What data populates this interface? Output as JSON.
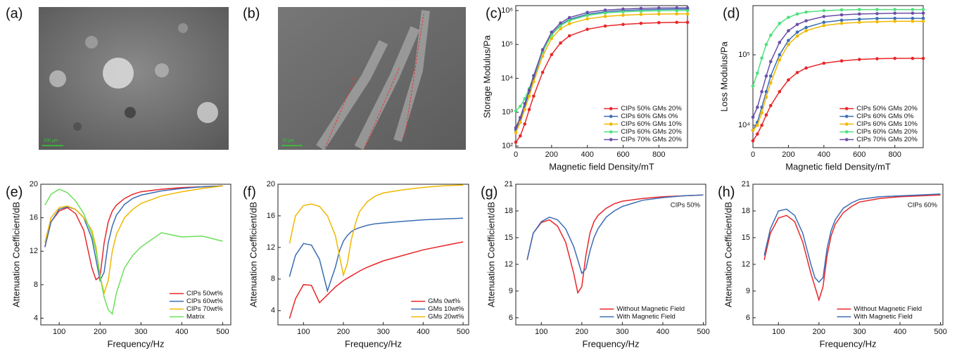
{
  "images": [
    {
      "label": "(a)",
      "scale_bar": "100 μm"
    },
    {
      "label": "(b)",
      "scale_bar": "20 μm"
    }
  ],
  "chart_data": [
    {
      "type": "line",
      "label": "(c)",
      "xlabel": "Magnetic field Density/mT",
      "ylabel": "Storage Modulus/Pa",
      "yscale": "log",
      "markers": true,
      "legend": "lower right",
      "x": [
        0,
        25,
        50,
        75,
        100,
        150,
        200,
        250,
        300,
        400,
        500,
        600,
        700,
        800,
        900,
        960
      ],
      "xlim": [
        0,
        960
      ],
      "xticks": [
        0,
        200,
        400,
        600,
        800
      ],
      "ylim": [
        90,
        1400000
      ],
      "yticks": [
        {
          "value": 100,
          "label": "10²"
        },
        {
          "value": 1000,
          "label": "10³"
        },
        {
          "value": 10000,
          "label": "10⁴"
        },
        {
          "value": 100000,
          "label": "10⁵"
        },
        {
          "value": 1000000,
          "label": "10⁶"
        }
      ],
      "series": [
        {
          "name": "CIPs 50% GMs 20%",
          "color": "#e8262a",
          "values": [
            130,
            200,
            450,
            1200,
            3000,
            15000,
            50000,
            110000,
            180000,
            280000,
            350000,
            390000,
            420000,
            440000,
            450000,
            450000
          ]
        },
        {
          "name": "CIPs 60% GMs 0%",
          "color": "#3b6db3",
          "values": [
            300,
            600,
            1500,
            4000,
            10000,
            60000,
            200000,
            380000,
            550000,
            780000,
            920000,
            1000000,
            1050000,
            1080000,
            1100000,
            1100000
          ]
        },
        {
          "name": "CIPs 60% GMs 10%",
          "color": "#f0b800",
          "values": [
            250,
            500,
            1200,
            3000,
            8000,
            45000,
            150000,
            290000,
            410000,
            570000,
            670000,
            730000,
            770000,
            790000,
            800000,
            800000
          ]
        },
        {
          "name": "CIPs 60% GMs 20%",
          "color": "#4fe07e",
          "values": [
            1100,
            1500,
            2500,
            5000,
            12000,
            60000,
            190000,
            360000,
            510000,
            720000,
            850000,
            920000,
            960000,
            990000,
            1000000,
            1000000
          ]
        },
        {
          "name": "CIPs 70% GMs 20%",
          "color": "#6a4fa8",
          "values": [
            350,
            700,
            1800,
            4500,
            12000,
            70000,
            230000,
            430000,
            620000,
            880000,
            1030000,
            1110000,
            1160000,
            1190000,
            1200000,
            1200000
          ]
        }
      ]
    },
    {
      "type": "line",
      "label": "(d)",
      "xlabel": "Magnetic field Density/mT",
      "ylabel": "Loss Modulus/Pa",
      "yscale": "log",
      "markers": true,
      "legend": "lower right",
      "x": [
        0,
        25,
        50,
        75,
        100,
        150,
        200,
        250,
        300,
        400,
        500,
        600,
        700,
        800,
        900,
        960
      ],
      "xlim": [
        0,
        960
      ],
      "xticks": [
        0,
        200,
        400,
        600,
        800
      ],
      "ylim": [
        4800,
        500000
      ],
      "yticks": [
        {
          "value": 10000,
          "label": "10⁴"
        },
        {
          "value": 100000,
          "label": "10⁵"
        }
      ],
      "series": [
        {
          "name": "CIPs 50% GMs 20%",
          "color": "#e8262a",
          "values": [
            6000,
            7500,
            10000,
            14000,
            19000,
            30000,
            44000,
            56000,
            65000,
            76000,
            82000,
            86000,
            88000,
            89000,
            89000,
            89000
          ]
        },
        {
          "name": "CIPs 60% GMs 0%",
          "color": "#3b6db3",
          "values": [
            8500,
            11000,
            18000,
            30000,
            50000,
            100000,
            160000,
            210000,
            245000,
            290000,
            310000,
            320000,
            328000,
            330000,
            330000,
            330000
          ]
        },
        {
          "name": "CIPs 60% GMs 10%",
          "color": "#f0b800",
          "values": [
            8500,
            10000,
            15000,
            25000,
            40000,
            85000,
            140000,
            185000,
            220000,
            260000,
            280000,
            290000,
            295000,
            300000,
            300000,
            300000
          ]
        },
        {
          "name": "CIPs 60% GMs 20%",
          "color": "#4fe07e",
          "values": [
            36000,
            55000,
            90000,
            140000,
            190000,
            280000,
            340000,
            380000,
            405000,
            425000,
            435000,
            440000,
            440000,
            440000,
            440000,
            440000
          ]
        },
        {
          "name": "CIPs 70% GMs 20%",
          "color": "#6a4fa8",
          "values": [
            13000,
            18000,
            30000,
            50000,
            80000,
            150000,
            220000,
            270000,
            305000,
            350000,
            370000,
            380000,
            385000,
            390000,
            390000,
            390000
          ]
        }
      ]
    },
    {
      "type": "line",
      "label": "(e)",
      "xlabel": "Frequency/Hz",
      "ylabel": "Attenuation Coefficient/dB",
      "legend": "lower right",
      "x": [
        65,
        80,
        100,
        120,
        140,
        160,
        180,
        190,
        200,
        210,
        220,
        230,
        240,
        260,
        280,
        300,
        350,
        400,
        450,
        500
      ],
      "xlim": [
        55,
        520
      ],
      "xticks": [
        100,
        200,
        300,
        400,
        500
      ],
      "ylim": [
        3.2,
        20
      ],
      "yticks": [
        4,
        8,
        12,
        16,
        20
      ],
      "series": [
        {
          "name": "CIPs 50wt%",
          "color": "#e8262a",
          "values": [
            12.5,
            15.5,
            16.8,
            17.2,
            16.5,
            14.5,
            10,
            8.6,
            9,
            13,
            15.5,
            16.8,
            17.5,
            18.3,
            18.8,
            19.1,
            19.4,
            19.6,
            19.7,
            19.8
          ]
        },
        {
          "name": "CIPs 60wt%",
          "color": "#3b6db3",
          "values": [
            12.5,
            15.5,
            17,
            17.3,
            17,
            16,
            13.5,
            11,
            8.5,
            9.5,
            13,
            15,
            16.3,
            17.6,
            18.3,
            18.7,
            19.2,
            19.5,
            19.7,
            19.8
          ]
        },
        {
          "name": "CIPs 70wt%",
          "color": "#f0b800",
          "values": [
            13,
            16,
            17.2,
            17.4,
            17,
            16,
            14.5,
            12.5,
            9,
            7,
            8.5,
            12,
            14,
            16,
            17,
            17.7,
            18.6,
            19.1,
            19.5,
            19.8
          ]
        },
        {
          "name": "Matrix",
          "color": "#6be05a",
          "values": [
            17.5,
            18.8,
            19.4,
            19,
            18,
            16.5,
            14,
            12,
            9,
            6.5,
            5,
            4.5,
            7,
            10,
            11.5,
            12.5,
            14.2,
            13.7,
            13.8,
            13.2
          ]
        }
      ]
    },
    {
      "type": "line",
      "label": "(f)",
      "xlabel": "Frequency/Hz",
      "ylabel": "Attenuation Coefficient/dB",
      "legend": "lower right",
      "x": [
        65,
        80,
        100,
        120,
        140,
        160,
        180,
        190,
        200,
        210,
        220,
        230,
        240,
        260,
        280,
        300,
        350,
        400,
        450,
        500
      ],
      "xlim": [
        36,
        514
      ],
      "xticks": [
        100,
        200,
        300,
        400,
        500
      ],
      "ylim": [
        2.2,
        20
      ],
      "yticks": [
        4,
        8,
        12,
        16,
        20
      ],
      "series": [
        {
          "name": "GMs 0wt%",
          "color": "#e8262a",
          "values": [
            3,
            5.5,
            7.3,
            7.2,
            5,
            6,
            7,
            7.4,
            7.8,
            8.1,
            8.4,
            8.7,
            9,
            9.5,
            9.9,
            10.3,
            11,
            11.7,
            12.2,
            12.7
          ]
        },
        {
          "name": "GMs 10wt%",
          "color": "#3b6db3",
          "values": [
            8.3,
            11,
            12.5,
            12.3,
            10.5,
            6.5,
            9.5,
            11.5,
            12.8,
            13.5,
            14,
            14.3,
            14.5,
            14.8,
            15,
            15.1,
            15.3,
            15.5,
            15.6,
            15.7
          ]
        },
        {
          "name": "GMs 20wt%",
          "color": "#f0b800",
          "values": [
            12.5,
            16,
            17.3,
            17.5,
            17.2,
            16,
            13.5,
            11,
            8.5,
            10,
            13,
            15,
            16.5,
            17.8,
            18.5,
            18.9,
            19.3,
            19.6,
            19.8,
            19.9
          ]
        }
      ]
    },
    {
      "type": "line",
      "label": "(g)",
      "xlabel": "Frequency/Hz",
      "ylabel": "Attenuation Coefficient/dB",
      "legend": "lower right",
      "annotation": "CIPs 50%",
      "x": [
        65,
        80,
        100,
        120,
        140,
        160,
        180,
        190,
        200,
        210,
        220,
        230,
        240,
        260,
        280,
        300,
        350,
        400,
        450,
        500
      ],
      "xlim": [
        37,
        506
      ],
      "xticks": [
        100,
        200,
        300,
        400,
        500
      ],
      "ylim": [
        5.2,
        21
      ],
      "yticks": [
        6,
        9,
        12,
        15,
        18,
        21
      ],
      "series": [
        {
          "name": "Without Magnetic Field",
          "color": "#e8262a",
          "values": [
            12.5,
            15.5,
            16.7,
            17,
            16.3,
            14.5,
            11,
            8.8,
            9.5,
            13,
            15.5,
            16.8,
            17.5,
            18.3,
            18.8,
            19.1,
            19.4,
            19.6,
            19.7,
            19.8
          ]
        },
        {
          "name": "With Magnetic Field",
          "color": "#3b6db3",
          "values": [
            12.5,
            15.5,
            16.8,
            17.3,
            17,
            16,
            14,
            12.5,
            11,
            11.5,
            13.5,
            15,
            16,
            17.3,
            18,
            18.5,
            19.2,
            19.5,
            19.7,
            19.8
          ]
        }
      ]
    },
    {
      "type": "line",
      "label": "(h)",
      "xlabel": "Frequency/Hz",
      "ylabel": "Attenuation Coefficient/dB",
      "legend": "lower right",
      "annotation": "CIPs 60%",
      "x": [
        65,
        80,
        100,
        120,
        140,
        160,
        180,
        190,
        200,
        210,
        220,
        230,
        240,
        260,
        280,
        300,
        350,
        400,
        450,
        500
      ],
      "xlim": [
        37,
        506
      ],
      "xticks": [
        100,
        200,
        300,
        400,
        500
      ],
      "ylim": [
        5.2,
        21
      ],
      "yticks": [
        6,
        9,
        12,
        15,
        18,
        21
      ],
      "series": [
        {
          "name": "Without Magnetic Field",
          "color": "#e8262a",
          "values": [
            12.5,
            15.5,
            17.2,
            17.5,
            16.8,
            14.5,
            11,
            9.5,
            8,
            9.5,
            13,
            15.2,
            16.5,
            17.8,
            18.5,
            19,
            19.4,
            19.6,
            19.7,
            19.8
          ]
        },
        {
          "name": "With Magnetic Field",
          "color": "#3b6db3",
          "values": [
            13,
            16,
            18,
            18.2,
            17.5,
            15.5,
            12,
            10.5,
            10,
            10.5,
            13.8,
            15.8,
            17,
            18.3,
            18.9,
            19.3,
            19.6,
            19.7,
            19.8,
            19.9
          ]
        }
      ]
    }
  ]
}
